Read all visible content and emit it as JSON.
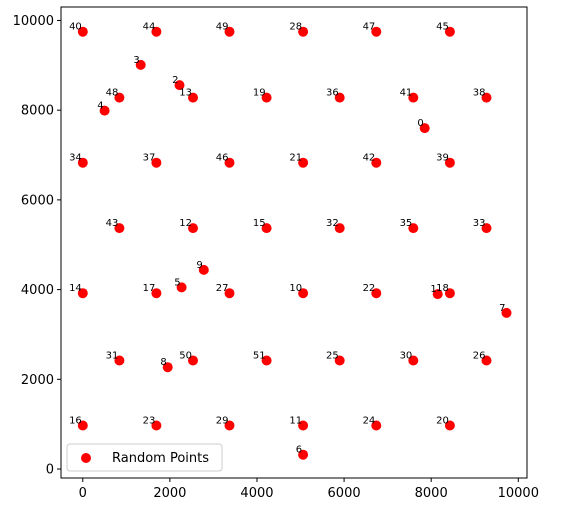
{
  "chart_data": {
    "type": "scatter",
    "title": "",
    "xlabel": "",
    "ylabel": "",
    "xlim": [
      -500,
      10200
    ],
    "ylim": [
      -200,
      10300
    ],
    "xticks": [
      0,
      2000,
      4000,
      6000,
      8000,
      10000
    ],
    "yticks": [
      0,
      2000,
      4000,
      6000,
      8000,
      10000
    ],
    "grid": false,
    "legend": {
      "label": "Random Points",
      "placement": "lower-left"
    },
    "marker_color": "#ff0000",
    "series": [
      {
        "name": "Random Points",
        "points": [
          {
            "label": "0",
            "x": 7850,
            "y": 7600
          },
          {
            "label": "1",
            "x": 8150,
            "y": 3900
          },
          {
            "label": "2",
            "x": 2220,
            "y": 8560
          },
          {
            "label": "3",
            "x": 1330,
            "y": 9010
          },
          {
            "label": "4",
            "x": 500,
            "y": 7990
          },
          {
            "label": "5",
            "x": 2270,
            "y": 4050
          },
          {
            "label": "6",
            "x": 5060,
            "y": 320
          },
          {
            "label": "7",
            "x": 9730,
            "y": 3480
          },
          {
            "label": "8",
            "x": 1950,
            "y": 2270
          },
          {
            "label": "9",
            "x": 2780,
            "y": 4440
          },
          {
            "label": "10",
            "x": 5060,
            "y": 3920
          },
          {
            "label": "11",
            "x": 5060,
            "y": 970
          },
          {
            "label": "12",
            "x": 2530,
            "y": 5370
          },
          {
            "label": "13",
            "x": 2530,
            "y": 8280
          },
          {
            "label": "14",
            "x": 0,
            "y": 3920
          },
          {
            "label": "15",
            "x": 4220,
            "y": 5370
          },
          {
            "label": "16",
            "x": 0,
            "y": 970
          },
          {
            "label": "17",
            "x": 1690,
            "y": 3920
          },
          {
            "label": "18",
            "x": 8430,
            "y": 3920
          },
          {
            "label": "19",
            "x": 4220,
            "y": 8280
          },
          {
            "label": "20",
            "x": 8430,
            "y": 970
          },
          {
            "label": "21",
            "x": 5060,
            "y": 6830
          },
          {
            "label": "22",
            "x": 6740,
            "y": 3920
          },
          {
            "label": "23",
            "x": 1690,
            "y": 970
          },
          {
            "label": "24",
            "x": 6740,
            "y": 970
          },
          {
            "label": "25",
            "x": 5900,
            "y": 2420
          },
          {
            "label": "26",
            "x": 9270,
            "y": 2420
          },
          {
            "label": "27",
            "x": 3370,
            "y": 3920
          },
          {
            "label": "28",
            "x": 5060,
            "y": 9750
          },
          {
            "label": "29",
            "x": 3370,
            "y": 970
          },
          {
            "label": "30",
            "x": 7590,
            "y": 2420
          },
          {
            "label": "31",
            "x": 840,
            "y": 2420
          },
          {
            "label": "32",
            "x": 5900,
            "y": 5370
          },
          {
            "label": "33",
            "x": 9270,
            "y": 5370
          },
          {
            "label": "34",
            "x": 0,
            "y": 6830
          },
          {
            "label": "35",
            "x": 7590,
            "y": 5370
          },
          {
            "label": "36",
            "x": 5900,
            "y": 8280
          },
          {
            "label": "37",
            "x": 1690,
            "y": 6830
          },
          {
            "label": "38",
            "x": 9270,
            "y": 8280
          },
          {
            "label": "39",
            "x": 8430,
            "y": 6830
          },
          {
            "label": "40",
            "x": 0,
            "y": 9750
          },
          {
            "label": "41",
            "x": 7590,
            "y": 8280
          },
          {
            "label": "42",
            "x": 6740,
            "y": 6830
          },
          {
            "label": "43",
            "x": 840,
            "y": 5370
          },
          {
            "label": "44",
            "x": 1690,
            "y": 9750
          },
          {
            "label": "45",
            "x": 8430,
            "y": 9750
          },
          {
            "label": "46",
            "x": 3370,
            "y": 6830
          },
          {
            "label": "47",
            "x": 6740,
            "y": 9750
          },
          {
            "label": "48",
            "x": 840,
            "y": 8280
          },
          {
            "label": "49",
            "x": 3370,
            "y": 9750
          },
          {
            "label": "50",
            "x": 2530,
            "y": 2420
          },
          {
            "label": "51",
            "x": 4220,
            "y": 2420
          }
        ]
      }
    ]
  }
}
